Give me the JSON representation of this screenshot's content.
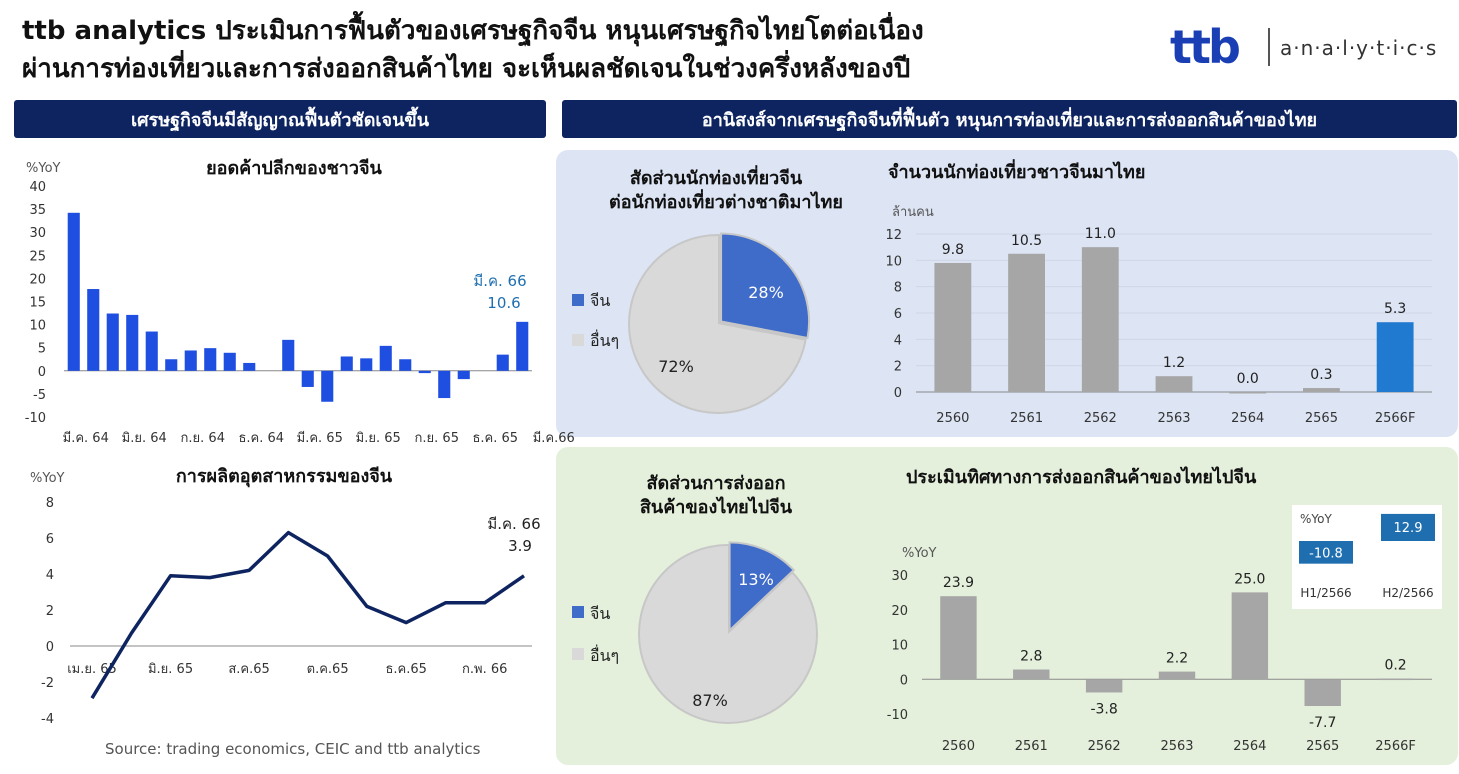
{
  "header": {
    "title_line1": "ttb analytics ประเมินการฟื้นตัวของเศรษฐกิจจีน  หนุนเศรษฐกิจไทยโตต่อเนื่อง",
    "title_line2": "ผ่านการท่องเที่ยวและการส่งออกสินค้าไทย  จะเห็นผลชัดเจนในช่วงครึ่งหลังของปี",
    "logo_mark": "ttb",
    "logo_text": "a·n·a·l·y·t·i·c·s"
  },
  "sections": {
    "left": "เศรษฐกิจจีนมีสัญญาณฟื้นตัวชัดเจนขึ้น",
    "right": "อานิสงส์จากเศรษฐกิจจีนที่ฟื้นตัว  หนุนการท่องเที่ยวและการส่งออกสินค้าของไทย"
  },
  "source": "Source: trading economics, CEIC and ttb analytics",
  "colors": {
    "navy": "#0e2460",
    "blue": "#1f4fe0",
    "grey": "#a6a6a6",
    "panel_blue": "#dde5f5",
    "panel_green": "#e4f0dc",
    "pie_blue": "#3f6bc9",
    "pie_grey": "#d9d9d9",
    "annot_blue": "#1f6fb0",
    "highlight_blue": "#1f7ad0"
  },
  "chart_data": [
    {
      "type": "bar",
      "title": "ยอดค้าปลีกของชาวจีน",
      "ylabel": "%YoY",
      "ylim": [
        -10,
        40
      ],
      "yticks": [
        40,
        35,
        30,
        25,
        20,
        15,
        10,
        5,
        0,
        -5,
        -10
      ],
      "x_tick_labels": [
        "มี.ค. 64",
        "มิ.ย. 64",
        "ก.ย. 64",
        "ธ.ค. 64",
        "มี.ค. 65",
        "มิ.ย. 65",
        "ก.ย. 65",
        "ธ.ค. 65",
        "มี.ค.66"
      ],
      "x_tick_at": [
        0,
        3,
        6,
        9,
        12,
        15,
        18,
        21,
        24
      ],
      "values": [
        34.2,
        17.7,
        12.4,
        12.1,
        8.5,
        2.5,
        4.4,
        4.9,
        3.9,
        1.7,
        0,
        6.7,
        -3.5,
        -6.7,
        3.1,
        2.7,
        5.4,
        2.5,
        -0.5,
        -5.9,
        -1.8,
        0,
        3.5,
        10.6
      ],
      "annotation": {
        "label": "มี.ค. 66",
        "value": "10.6"
      }
    },
    {
      "type": "line",
      "title": "การผลิตอุตสาหกรรมของจีน",
      "ylabel": "%YoY",
      "ylim": [
        -4,
        8
      ],
      "yticks": [
        8,
        6,
        4,
        2,
        0,
        -2,
        -4
      ],
      "x_tick_labels": [
        "เม.ย. 65",
        "มิ.ย. 65",
        "ส.ค.65",
        "ต.ค.65",
        "ธ.ค.65",
        "ก.พ. 66"
      ],
      "x_tick_at": [
        0,
        2,
        4,
        6,
        8,
        10
      ],
      "values": [
        -2.9,
        0.7,
        3.9,
        3.8,
        4.2,
        6.3,
        5.0,
        2.2,
        1.3,
        2.4,
        2.4,
        3.9
      ],
      "annotation": {
        "label": "มี.ค. 66",
        "value": "3.9"
      }
    },
    {
      "type": "pie",
      "title_line1": "สัดส่วนนักท่องเที่ยวจีน",
      "title_line2": "ต่อนักท่องเที่ยวต่างชาติมาไทย",
      "slices": [
        {
          "name": "จีน",
          "value": 28,
          "label": "28%"
        },
        {
          "name": "อื่นๆ",
          "value": 72,
          "label": "72%"
        }
      ]
    },
    {
      "type": "bar",
      "title": "จำนวนนักท่องเที่ยวชาวจีนมาไทย",
      "ylabel": "ล้านคน",
      "ylim": [
        0,
        12
      ],
      "yticks": [
        12,
        10,
        8,
        6,
        4,
        2,
        0
      ],
      "categories": [
        "2560",
        "2561",
        "2562",
        "2563",
        "2564",
        "2565",
        "2566F"
      ],
      "values": [
        9.8,
        10.5,
        11.0,
        1.2,
        0.0,
        0.3,
        5.3
      ],
      "labels": [
        "9.8",
        "10.5",
        "11.0",
        "1.2",
        "0.0",
        "0.3",
        "5.3"
      ],
      "highlight_last": true
    },
    {
      "type": "pie",
      "title_line1": "สัดส่วนการส่งออก",
      "title_line2": "สินค้าของไทยไปจีน",
      "slices": [
        {
          "name": "จีน",
          "value": 13,
          "label": "13%"
        },
        {
          "name": "อื่นๆ",
          "value": 87,
          "label": "87%"
        }
      ]
    },
    {
      "type": "bar",
      "title": "ประเมินทิศทางการส่งออกสินค้าของไทยไปจีน",
      "ylabel": "%YoY",
      "ylim": [
        -10,
        30
      ],
      "yticks": [
        30,
        20,
        10,
        0,
        -10
      ],
      "categories": [
        "2560",
        "2561",
        "2562",
        "2563",
        "2564",
        "2565",
        "2566F"
      ],
      "values": [
        23.9,
        2.8,
        -3.8,
        2.2,
        25.0,
        -7.7,
        0.2
      ],
      "labels": [
        "23.9",
        "2.8",
        "-3.8",
        "2.2",
        "25.0",
        "-7.7",
        "0.2"
      ]
    },
    {
      "type": "bar",
      "ylabel": "%YoY",
      "categories": [
        "H1/2566",
        "H2/2566"
      ],
      "values": [
        -10.8,
        12.9
      ],
      "labels": [
        "-10.8",
        "12.9"
      ]
    }
  ]
}
